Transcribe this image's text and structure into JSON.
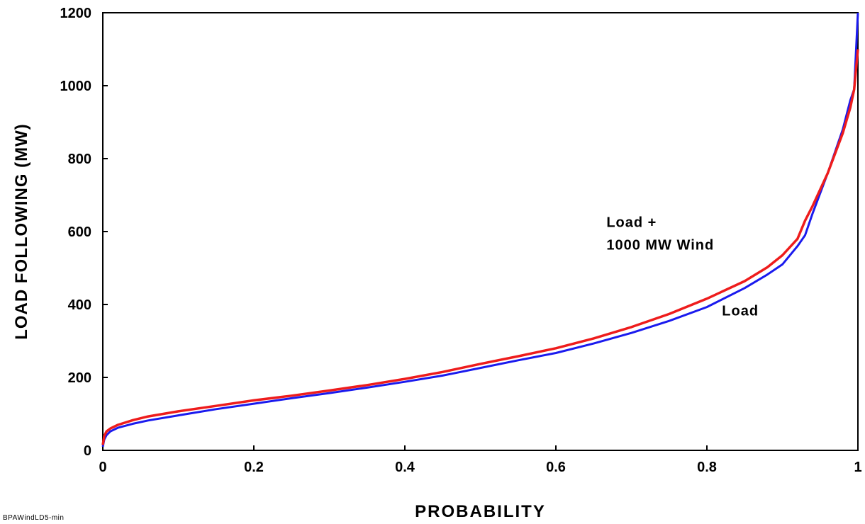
{
  "footnote": "BPAWindLD5-min",
  "chart_data": {
    "type": "line",
    "title": "",
    "xlabel": "PROBABILITY",
    "ylabel": "LOAD FOLLOWING (MW)",
    "xlim": [
      0,
      1
    ],
    "ylim": [
      0,
      1200
    ],
    "xticks": [
      0,
      0.2,
      0.4,
      0.6,
      0.8,
      1
    ],
    "xtick_labels": [
      "0",
      "0.2",
      "0.4",
      "0.6",
      "0.8",
      "1"
    ],
    "yticks": [
      0,
      200,
      400,
      600,
      800,
      1000,
      1200
    ],
    "ytick_labels": [
      "0",
      "200",
      "400",
      "600",
      "800",
      "1000",
      "1200"
    ],
    "grid": false,
    "series": [
      {
        "name": "Load",
        "color": "#1a1aee",
        "x": [
          0,
          0.002,
          0.005,
          0.01,
          0.02,
          0.04,
          0.06,
          0.1,
          0.15,
          0.2,
          0.25,
          0.3,
          0.35,
          0.4,
          0.45,
          0.5,
          0.55,
          0.6,
          0.65,
          0.7,
          0.75,
          0.8,
          0.85,
          0.88,
          0.9,
          0.92,
          0.93,
          0.94,
          0.96,
          0.98,
          0.99,
          0.995,
          1.0
        ],
        "y": [
          10,
          30,
          42,
          52,
          62,
          73,
          82,
          96,
          113,
          128,
          143,
          157,
          172,
          188,
          205,
          226,
          247,
          267,
          293,
          322,
          355,
          393,
          445,
          482,
          510,
          560,
          590,
          650,
          760,
          880,
          960,
          990,
          1200
        ]
      },
      {
        "name": "Load +\n1000 MW Wind",
        "color": "#ee1c1c",
        "x": [
          0,
          0.002,
          0.005,
          0.01,
          0.02,
          0.04,
          0.06,
          0.1,
          0.15,
          0.2,
          0.25,
          0.3,
          0.35,
          0.4,
          0.45,
          0.5,
          0.55,
          0.6,
          0.65,
          0.7,
          0.75,
          0.8,
          0.85,
          0.88,
          0.9,
          0.92,
          0.93,
          0.94,
          0.96,
          0.98,
          0.99,
          0.995,
          1.0
        ],
        "y": [
          15,
          40,
          52,
          60,
          70,
          83,
          93,
          107,
          122,
          137,
          150,
          164,
          179,
          196,
          215,
          237,
          258,
          280,
          307,
          338,
          374,
          416,
          464,
          502,
          535,
          580,
          630,
          670,
          760,
          870,
          940,
          990,
          1100
        ]
      }
    ],
    "annotations": [
      {
        "lines": [
          "Load +",
          "1000 MW Wind"
        ],
        "x": 0.667,
        "y": 613
      },
      {
        "lines": [
          "Load"
        ],
        "x": 0.82,
        "y": 370
      }
    ]
  }
}
